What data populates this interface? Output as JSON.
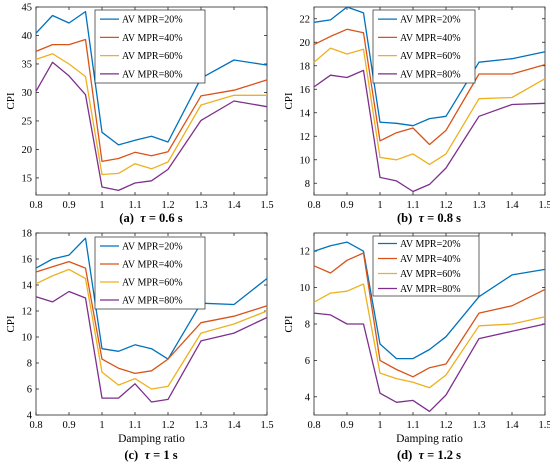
{
  "colors": {
    "AV MPR=20%": "#0072BD",
    "AV MPR=40%": "#D95319",
    "AV MPR=60%": "#EDB120",
    "AV MPR=80%": "#7E2F8E"
  },
  "chart_data": [
    {
      "type": "line",
      "panel_label": "(a)",
      "caption_tau": "τ",
      "caption_value": " = 0.6 s",
      "xlabel": "",
      "ylabel": "CPI",
      "xlim": [
        0.8,
        1.5
      ],
      "ylim": [
        12,
        45
      ],
      "xticks": [
        0.8,
        0.9,
        1,
        1.1,
        1.2,
        1.3,
        1.4,
        1.5
      ],
      "yticks": [
        15,
        20,
        25,
        30,
        35,
        40,
        45
      ],
      "grid": false,
      "legend": "top-center",
      "series": [
        {
          "name": "AV MPR=20%",
          "x": [
            0.8,
            0.85,
            0.9,
            0.95,
            1.0,
            1.05,
            1.1,
            1.15,
            1.2,
            1.3,
            1.4,
            1.5
          ],
          "y": [
            40.4,
            43.5,
            42.2,
            44.2,
            23.0,
            20.8,
            21.6,
            22.3,
            21.3,
            32.5,
            35.7,
            34.8
          ]
        },
        {
          "name": "AV MPR=40%",
          "x": [
            0.8,
            0.85,
            0.9,
            0.95,
            1.0,
            1.05,
            1.1,
            1.15,
            1.2,
            1.3,
            1.4,
            1.5
          ],
          "y": [
            37.2,
            38.4,
            38.4,
            39.3,
            17.9,
            18.4,
            19.5,
            18.9,
            19.6,
            29.4,
            30.4,
            32.2
          ]
        },
        {
          "name": "AV MPR=60%",
          "x": [
            0.8,
            0.85,
            0.9,
            0.95,
            1.0,
            1.05,
            1.1,
            1.15,
            1.2,
            1.3,
            1.4,
            1.5
          ],
          "y": [
            35.8,
            36.8,
            35.0,
            32.8,
            15.6,
            15.8,
            17.5,
            16.6,
            17.8,
            27.8,
            29.5,
            29.5
          ]
        },
        {
          "name": "AV MPR=80%",
          "x": [
            0.8,
            0.85,
            0.9,
            0.95,
            1.0,
            1.05,
            1.1,
            1.15,
            1.2,
            1.3,
            1.4,
            1.5
          ],
          "y": [
            30.2,
            35.3,
            32.9,
            29.6,
            13.4,
            12.8,
            14.1,
            14.5,
            16.5,
            25.1,
            28.5,
            27.5
          ]
        }
      ]
    },
    {
      "type": "line",
      "panel_label": "(b)",
      "caption_tau": "τ",
      "caption_value": " = 0.8 s",
      "xlabel": "",
      "ylabel": "CPI",
      "xlim": [
        0.8,
        1.5
      ],
      "ylim": [
        7,
        23
      ],
      "xticks": [
        0.8,
        0.9,
        1,
        1.1,
        1.2,
        1.3,
        1.4,
        1.5
      ],
      "yticks": [
        8,
        10,
        12,
        14,
        16,
        18,
        20,
        22
      ],
      "grid": false,
      "legend": "top-center",
      "series": [
        {
          "name": "AV MPR=20%",
          "x": [
            0.8,
            0.85,
            0.9,
            0.95,
            1.0,
            1.05,
            1.1,
            1.15,
            1.2,
            1.3,
            1.4,
            1.5
          ],
          "y": [
            21.7,
            21.9,
            23.0,
            22.5,
            13.2,
            13.1,
            12.9,
            13.5,
            13.7,
            18.3,
            18.6,
            19.2
          ]
        },
        {
          "name": "AV MPR=40%",
          "x": [
            0.8,
            0.85,
            0.9,
            0.95,
            1.0,
            1.05,
            1.1,
            1.15,
            1.2,
            1.3,
            1.4,
            1.5
          ],
          "y": [
            19.8,
            20.5,
            21.1,
            20.8,
            11.6,
            12.3,
            12.7,
            11.3,
            12.5,
            17.3,
            17.3,
            18.1
          ]
        },
        {
          "name": "AV MPR=60%",
          "x": [
            0.8,
            0.85,
            0.9,
            0.95,
            1.0,
            1.05,
            1.1,
            1.15,
            1.2,
            1.3,
            1.4,
            1.5
          ],
          "y": [
            18.3,
            19.5,
            19.0,
            19.4,
            10.2,
            10.0,
            10.5,
            9.6,
            10.5,
            15.2,
            15.3,
            16.9
          ]
        },
        {
          "name": "AV MPR=80%",
          "x": [
            0.8,
            0.85,
            0.9,
            0.95,
            1.0,
            1.05,
            1.1,
            1.15,
            1.2,
            1.3,
            1.4,
            1.5
          ],
          "y": [
            16.2,
            17.2,
            17.0,
            17.6,
            8.5,
            8.2,
            7.3,
            7.9,
            9.3,
            13.7,
            14.7,
            14.8
          ]
        }
      ]
    },
    {
      "type": "line",
      "panel_label": "(c)",
      "caption_tau": "τ",
      "caption_value": " = 1 s",
      "xlabel": "Damping ratio",
      "ylabel": "CPI",
      "xlim": [
        0.8,
        1.5
      ],
      "ylim": [
        4,
        18
      ],
      "xticks": [
        0.8,
        0.9,
        1,
        1.1,
        1.2,
        1.3,
        1.4,
        1.5
      ],
      "yticks": [
        4,
        6,
        8,
        10,
        12,
        14,
        16,
        18
      ],
      "grid": false,
      "legend": "top-center",
      "series": [
        {
          "name": "AV MPR=20%",
          "x": [
            0.8,
            0.85,
            0.9,
            0.95,
            1.0,
            1.05,
            1.1,
            1.15,
            1.2,
            1.3,
            1.4,
            1.5
          ],
          "y": [
            15.3,
            16.0,
            16.3,
            17.6,
            9.1,
            8.9,
            9.4,
            9.1,
            8.3,
            12.6,
            12.5,
            14.5
          ]
        },
        {
          "name": "AV MPR=40%",
          "x": [
            0.8,
            0.85,
            0.9,
            0.95,
            1.0,
            1.05,
            1.1,
            1.15,
            1.2,
            1.3,
            1.4,
            1.5
          ],
          "y": [
            15.0,
            15.4,
            15.8,
            15.3,
            8.3,
            7.6,
            7.2,
            7.4,
            8.3,
            11.1,
            11.6,
            12.4
          ]
        },
        {
          "name": "AV MPR=60%",
          "x": [
            0.8,
            0.85,
            0.9,
            0.95,
            1.0,
            1.05,
            1.1,
            1.15,
            1.2,
            1.3,
            1.4,
            1.5
          ],
          "y": [
            14.1,
            14.7,
            15.2,
            14.5,
            7.3,
            6.3,
            6.8,
            6.0,
            6.2,
            10.3,
            11.0,
            12.0
          ]
        },
        {
          "name": "AV MPR=80%",
          "x": [
            0.8,
            0.85,
            0.9,
            0.95,
            1.0,
            1.05,
            1.1,
            1.15,
            1.2,
            1.3,
            1.4,
            1.5
          ],
          "y": [
            13.1,
            12.7,
            13.5,
            13.0,
            5.3,
            5.3,
            6.4,
            5.0,
            5.2,
            9.7,
            10.3,
            11.5
          ]
        }
      ]
    },
    {
      "type": "line",
      "panel_label": "(d)",
      "caption_tau": "τ",
      "caption_value": " = 1.2 s",
      "xlabel": "Damping ratio",
      "ylabel": "CPI",
      "xlim": [
        0.8,
        1.5
      ],
      "ylim": [
        3,
        13
      ],
      "xticks": [
        0.8,
        0.9,
        1,
        1.1,
        1.2,
        1.3,
        1.4,
        1.5
      ],
      "yticks": [
        4,
        6,
        8,
        10,
        12
      ],
      "grid": false,
      "legend": "top-center",
      "series": [
        {
          "name": "AV MPR=20%",
          "x": [
            0.8,
            0.85,
            0.9,
            0.95,
            1.0,
            1.05,
            1.1,
            1.15,
            1.2,
            1.3,
            1.4,
            1.5
          ],
          "y": [
            12.0,
            12.3,
            12.5,
            12.0,
            6.9,
            6.1,
            6.1,
            6.6,
            7.3,
            9.5,
            10.7,
            11.0
          ]
        },
        {
          "name": "AV MPR=40%",
          "x": [
            0.8,
            0.85,
            0.9,
            0.95,
            1.0,
            1.05,
            1.1,
            1.15,
            1.2,
            1.3,
            1.4,
            1.5
          ],
          "y": [
            11.2,
            10.8,
            11.5,
            11.9,
            6.0,
            5.5,
            5.1,
            5.6,
            5.8,
            8.6,
            9.0,
            9.9
          ]
        },
        {
          "name": "AV MPR=60%",
          "x": [
            0.8,
            0.85,
            0.9,
            0.95,
            1.0,
            1.05,
            1.1,
            1.15,
            1.2,
            1.3,
            1.4,
            1.5
          ],
          "y": [
            9.2,
            9.7,
            9.8,
            10.2,
            5.3,
            5.0,
            4.8,
            4.5,
            5.2,
            7.9,
            8.0,
            8.4
          ]
        },
        {
          "name": "AV MPR=80%",
          "x": [
            0.8,
            0.85,
            0.9,
            0.95,
            1.0,
            1.05,
            1.1,
            1.15,
            1.2,
            1.3,
            1.4,
            1.5
          ],
          "y": [
            8.6,
            8.5,
            8.0,
            8.0,
            4.2,
            3.7,
            3.8,
            3.2,
            4.1,
            7.2,
            7.6,
            8.0
          ]
        }
      ]
    }
  ]
}
